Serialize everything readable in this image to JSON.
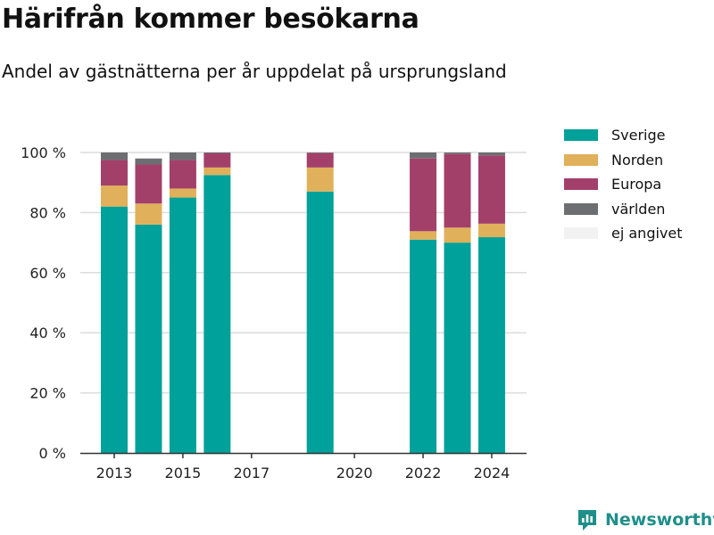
{
  "header": {
    "title": "Härifrån kommer besökarna",
    "subtitle": "Andel av gästnätterna per år uppdelat på ursprungsland"
  },
  "brand": {
    "name": "Newsworthy",
    "icon": "newsworthy-logo-icon",
    "color": "#1f8f8a"
  },
  "chart_data": {
    "type": "bar",
    "stacked": true,
    "categories": [
      "2013",
      "2014",
      "2015",
      "2016",
      "2017",
      "2018",
      "2019",
      "2020",
      "2021",
      "2022",
      "2023",
      "2024"
    ],
    "series": [
      {
        "name": "Sverige",
        "color": "#00a19a",
        "values": [
          82,
          76,
          85,
          92.5,
          null,
          null,
          87,
          null,
          null,
          71,
          70,
          71.8
        ]
      },
      {
        "name": "Norden",
        "color": "#e0b05a",
        "values": [
          7,
          7,
          3,
          2.5,
          null,
          null,
          8,
          null,
          null,
          2.8,
          5,
          4.5
        ]
      },
      {
        "name": "Europa",
        "color": "#a3406a",
        "values": [
          8.5,
          13,
          9.5,
          4.7,
          null,
          null,
          4.8,
          null,
          null,
          24.2,
          24.5,
          22.7
        ]
      },
      {
        "name": "världen",
        "color": "#6d6e71",
        "values": [
          2.5,
          2,
          2.5,
          0.3,
          null,
          null,
          0.2,
          null,
          null,
          2,
          0.5,
          1
        ]
      },
      {
        "name": "ej angivet",
        "color": "#f2f2f2",
        "values": [
          0,
          0,
          0,
          0,
          null,
          null,
          0,
          null,
          null,
          0,
          0,
          0
        ]
      }
    ],
    "x_tick_labels": [
      "2013",
      "2015",
      "2017",
      "2020",
      "2022",
      "2024"
    ],
    "y_ticks": [
      0,
      20,
      40,
      60,
      80,
      100
    ],
    "y_tick_labels": [
      "0 %",
      "20 %",
      "40 %",
      "60 %",
      "80 %",
      "100 %"
    ],
    "ylim": [
      0,
      100
    ],
    "xlabel": "",
    "ylabel": "",
    "grid": true,
    "legend_position": "top-right"
  }
}
